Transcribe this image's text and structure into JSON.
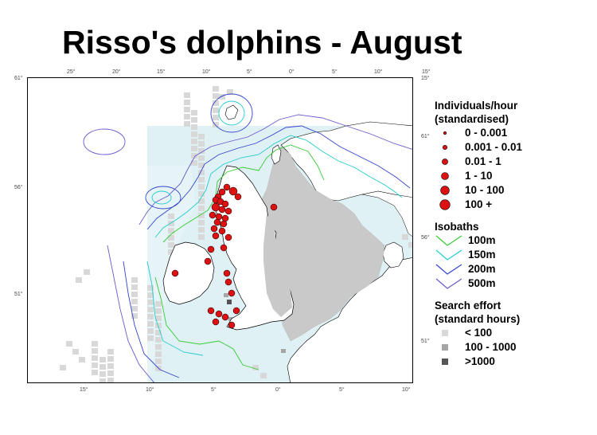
{
  "title": "Risso's dolphins - August",
  "map": {
    "top_axis_labels": [
      "25°",
      "20°",
      "15°",
      "10°",
      "5°",
      "0°",
      "5°",
      "10°",
      "15°"
    ],
    "bottom_axis_labels": [
      "15°",
      "10°",
      "5°",
      "0°",
      "5°",
      "10°"
    ],
    "left_axis_labels": [
      "61°",
      "56°",
      "51°"
    ],
    "right_axis_labels": [
      "15°",
      "61°",
      "56°",
      "51°"
    ],
    "colors": {
      "sea": "#dff1f5",
      "land": "#c9c9c9",
      "effort_low": "#d8d8d8",
      "effort_mid": "#a6a6a6",
      "effort_high": "#555555",
      "sighting": "#dd1111",
      "isobath_100m": "#33cc33",
      "isobath_150m": "#22cccc",
      "isobath_200m": "#3344cc",
      "isobath_500m": "#6a5acd"
    }
  },
  "legend": {
    "individuals": {
      "heading_line1": "Individuals/hour",
      "heading_line2": "(standardised)",
      "items": [
        {
          "label": "0 - 0.001",
          "size": 2
        },
        {
          "label": "0.001 - 0.01",
          "size": 3
        },
        {
          "label": "0.01 - 1",
          "size": 4
        },
        {
          "label": "1 - 10",
          "size": 5
        },
        {
          "label": "10 - 100",
          "size": 6
        },
        {
          "label": "100 +",
          "size": 7
        }
      ]
    },
    "isobaths": {
      "heading": "Isobaths",
      "items": [
        {
          "label": "100m",
          "color": "#33cc33"
        },
        {
          "label": "150m",
          "color": "#22cccc"
        },
        {
          "label": "200m",
          "color": "#3344cc"
        },
        {
          "label": "500m",
          "color": "#6a5acd"
        }
      ]
    },
    "effort": {
      "heading_line1": "Search effort",
      "heading_line2": "(standard hours)",
      "items": [
        {
          "label": "< 100",
          "color": "#d8d8d8"
        },
        {
          "label": "100 - 1000",
          "color": "#a6a6a6"
        },
        {
          "label": ">1000",
          "color": "#555555"
        }
      ]
    }
  }
}
